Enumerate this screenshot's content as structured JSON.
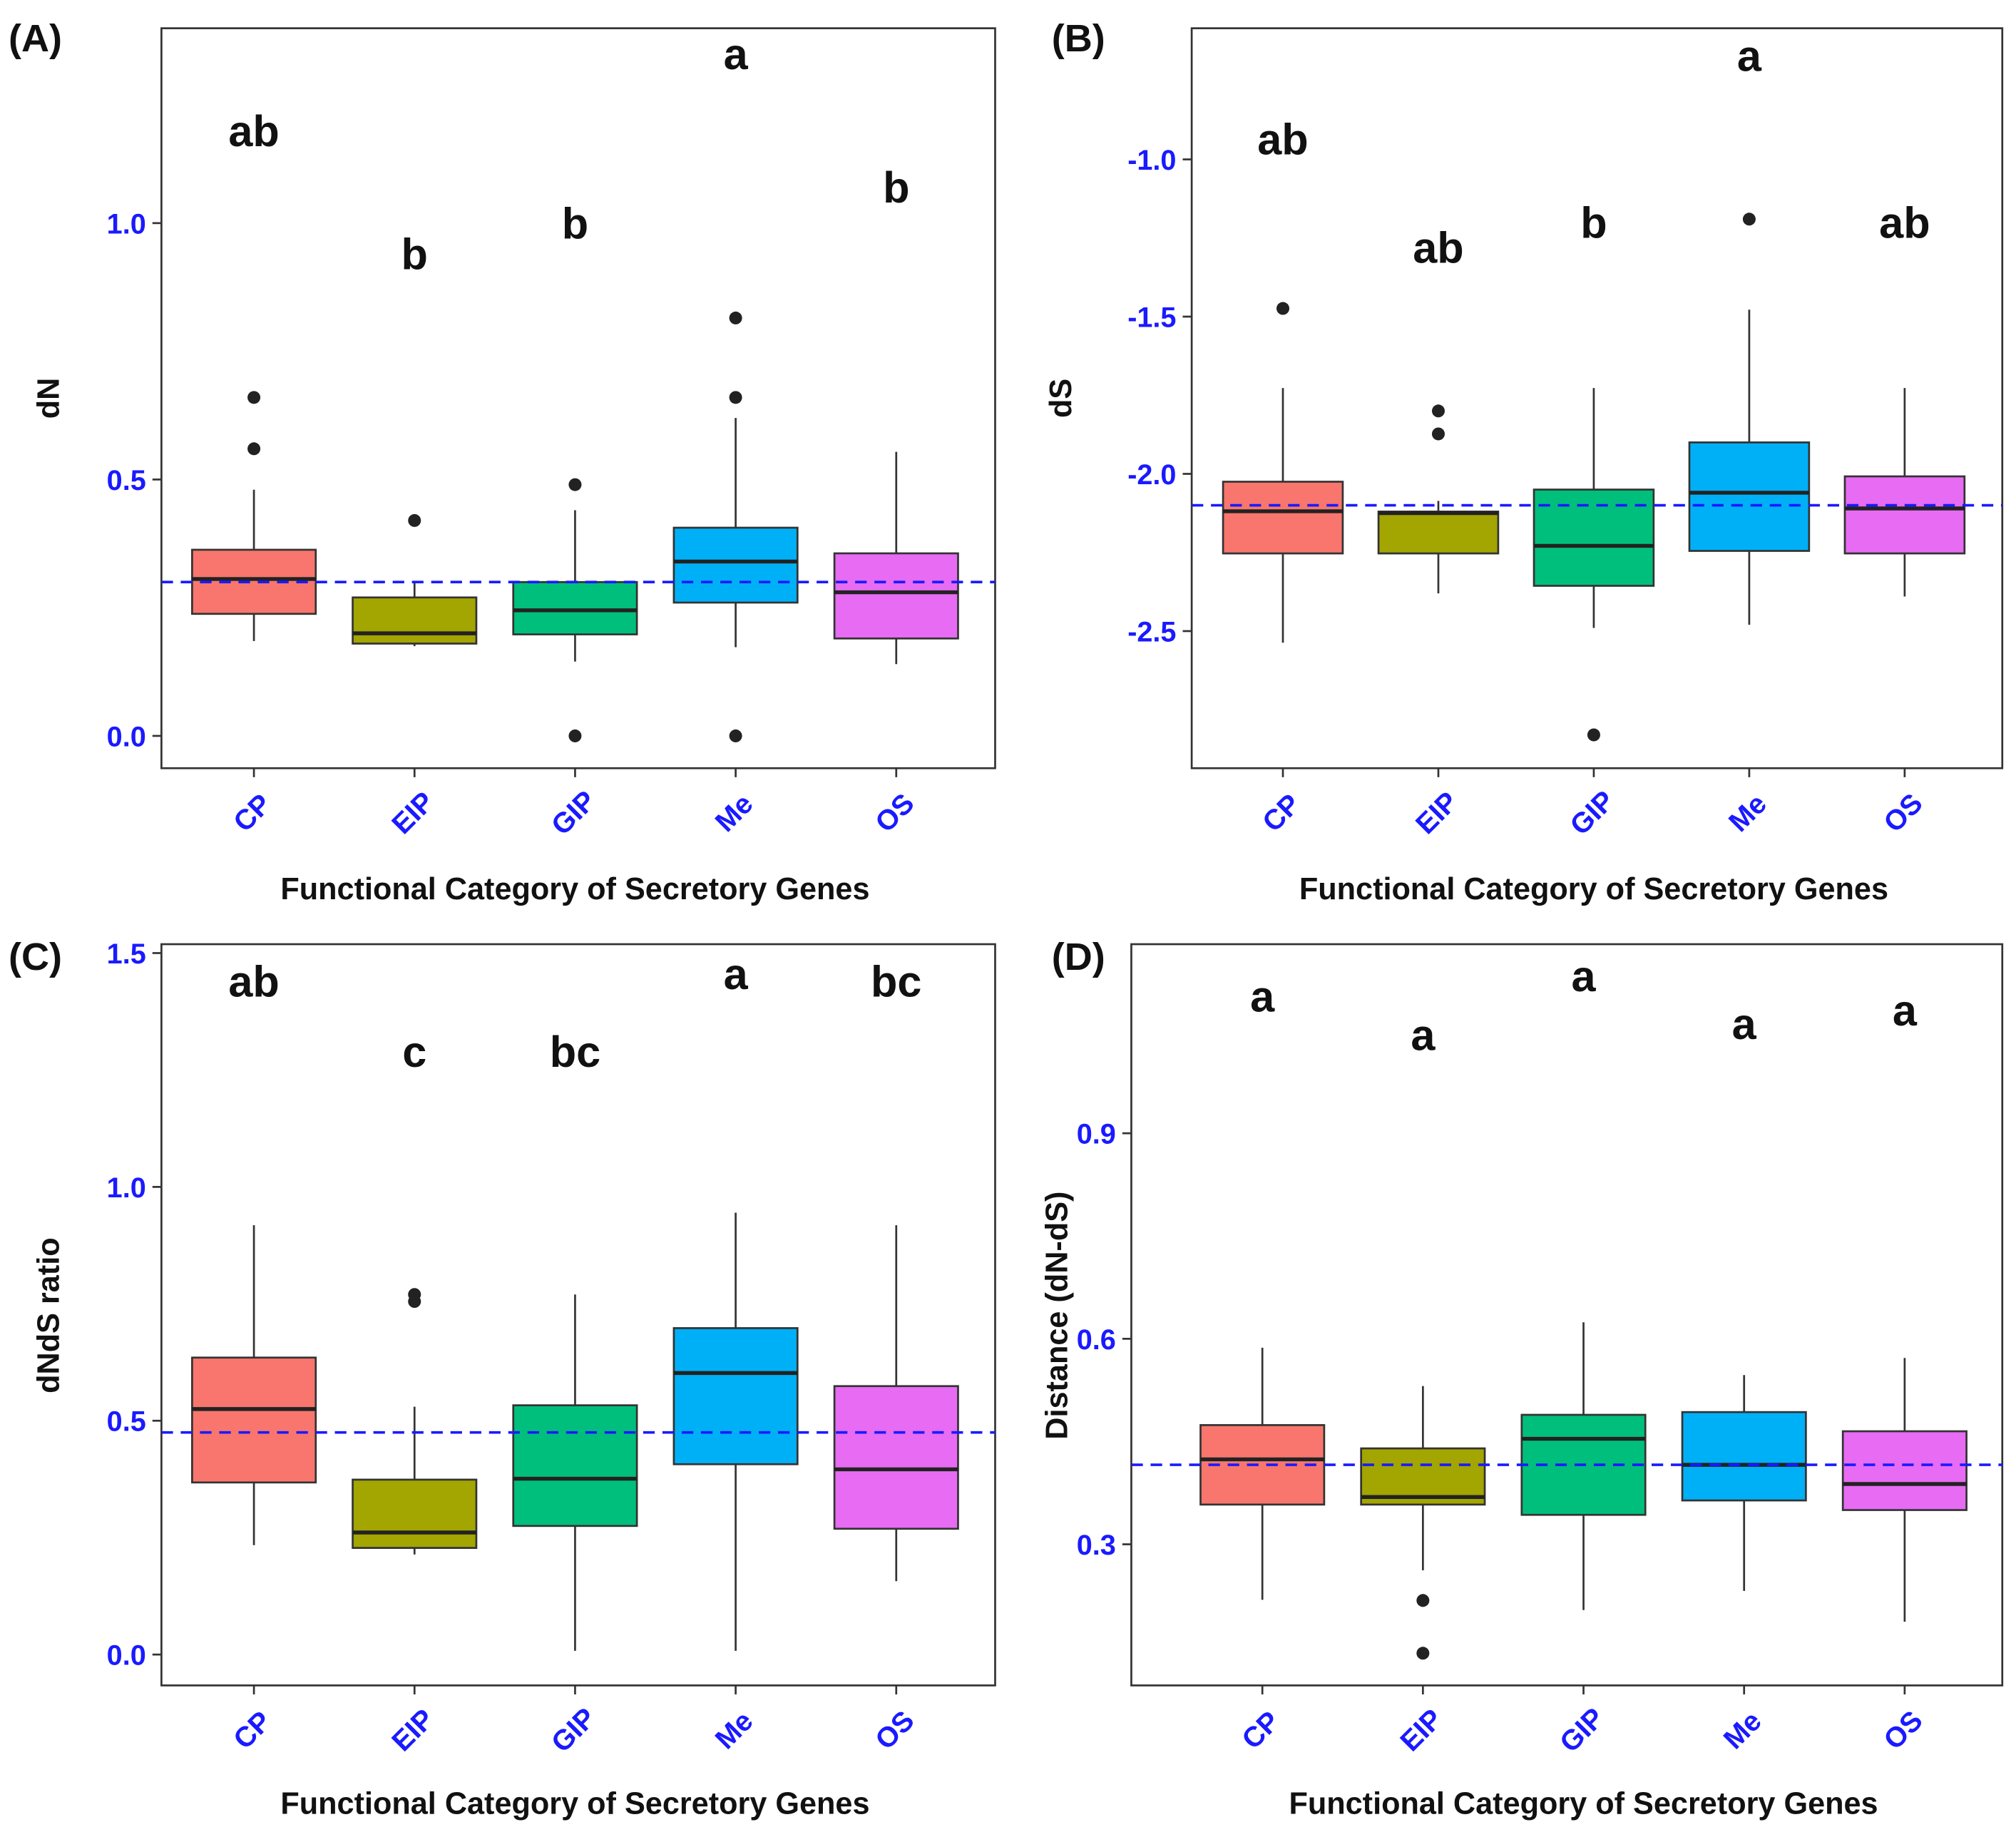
{
  "chart_data": [
    {
      "type": "box",
      "panel_label": "(A)",
      "xlabel": "Functional Category of Secretory Genes",
      "ylabel": "dN",
      "categories": [
        "CP",
        "EIP",
        "GIP",
        "Me",
        "OS"
      ],
      "colors": [
        "#F8766D",
        "#A3A500",
        "#00BF7D",
        "#00B0F6",
        "#E76BF3"
      ],
      "yticks": [
        0.0,
        0.5,
        1.0
      ],
      "ytick_labels": [
        "0.0",
        "0.5",
        "1.0"
      ],
      "ylim": [
        -0.063,
        1.38
      ],
      "reference_line": 0.3,
      "boxes": [
        {
          "low": 0.185,
          "q1": 0.238,
          "median": 0.306,
          "q3": 0.363,
          "high": 0.48,
          "outliers": [
            0.56,
            0.66
          ]
        },
        {
          "low": 0.175,
          "q1": 0.18,
          "median": 0.2,
          "q3": 0.27,
          "high": 0.3,
          "outliers": [
            0.42
          ]
        },
        {
          "low": 0.145,
          "q1": 0.198,
          "median": 0.245,
          "q3": 0.3,
          "high": 0.44,
          "outliers": [
            0.49,
            0.0
          ]
        },
        {
          "low": 0.173,
          "q1": 0.26,
          "median": 0.34,
          "q3": 0.406,
          "high": 0.62,
          "outliers": [
            0.66,
            0.815,
            0.0
          ]
        },
        {
          "low": 0.14,
          "q1": 0.19,
          "median": 0.28,
          "q3": 0.356,
          "high": 0.554,
          "outliers": []
        }
      ],
      "letters": [
        "ab",
        "b",
        "b",
        "a",
        "b"
      ],
      "letter_y": [
        1.18,
        0.94,
        1.0,
        1.33,
        1.07
      ]
    },
    {
      "type": "box",
      "panel_label": "(B)",
      "xlabel": "Functional Category of Secretory Genes",
      "ylabel": "dS",
      "categories": [
        "CP",
        "EIP",
        "GIP",
        "Me",
        "OS"
      ],
      "colors": [
        "#F8766D",
        "#A3A500",
        "#00BF7D",
        "#00B0F6",
        "#E76BF3"
      ],
      "yticks": [
        -2.5,
        -2.0,
        -1.5,
        -1.0
      ],
      "ytick_labels": [
        "-2.5",
        "-2.0",
        "-1.5",
        "-1.0"
      ],
      "ylim": [
        -2.936,
        -0.583
      ],
      "reference_line": -2.1,
      "boxes": [
        {
          "low": -2.537,
          "q1": -2.253,
          "median": -2.119,
          "q3": -2.025,
          "high": -1.727,
          "outliers": [
            -1.474
          ]
        },
        {
          "low": -2.38,
          "q1": -2.253,
          "median": -2.125,
          "q3": -2.12,
          "high": -2.086,
          "outliers": [
            -1.873,
            -1.8
          ]
        },
        {
          "low": -2.49,
          "q1": -2.356,
          "median": -2.229,
          "q3": -2.05,
          "high": -1.727,
          "outliers": [
            -2.83
          ]
        },
        {
          "low": -2.48,
          "q1": -2.245,
          "median": -2.06,
          "q3": -1.9,
          "high": -1.478,
          "outliers": [
            -1.19
          ]
        },
        {
          "low": -2.39,
          "q1": -2.253,
          "median": -2.11,
          "q3": -2.008,
          "high": -1.727,
          "outliers": []
        }
      ],
      "letters": [
        "ab",
        "ab",
        "b",
        "a",
        "ab"
      ],
      "letter_y": [
        -0.935,
        -1.28,
        -1.2,
        -0.67,
        -1.2
      ]
    },
    {
      "type": "box",
      "panel_label": "(C)",
      "xlabel": "Functional Category of Secretory Genes",
      "ylabel": "dNdS ratio",
      "categories": [
        "CP",
        "EIP",
        "GIP",
        "Me",
        "OS"
      ],
      "colors": [
        "#F8766D",
        "#A3A500",
        "#00BF7D",
        "#00B0F6",
        "#E76BF3"
      ],
      "yticks": [
        0.0,
        0.5,
        1.0,
        1.5
      ],
      "ytick_labels": [
        "0.0",
        "0.5",
        "1.0",
        "1.5"
      ],
      "ylim": [
        -0.066,
        1.519
      ],
      "reference_line": 0.475,
      "boxes": [
        {
          "low": 0.234,
          "q1": 0.368,
          "median": 0.525,
          "q3": 0.635,
          "high": 0.918,
          "outliers": []
        },
        {
          "low": 0.214,
          "q1": 0.228,
          "median": 0.261,
          "q3": 0.374,
          "high": 0.53,
          "outliers": [
            0.77,
            0.755
          ]
        },
        {
          "low": 0.008,
          "q1": 0.275,
          "median": 0.376,
          "q3": 0.533,
          "high": 0.77,
          "outliers": []
        },
        {
          "low": 0.008,
          "q1": 0.407,
          "median": 0.602,
          "q3": 0.698,
          "high": 0.945,
          "outliers": []
        },
        {
          "low": 0.157,
          "q1": 0.269,
          "median": 0.396,
          "q3": 0.574,
          "high": 0.918,
          "outliers": []
        }
      ],
      "letters": [
        "ab",
        "c",
        "bc",
        "a",
        "bc"
      ],
      "letter_y": [
        1.44,
        1.29,
        1.29,
        1.456,
        1.44
      ]
    },
    {
      "type": "box",
      "panel_label": "(D)",
      "xlabel": "Functional Category of Secretory Genes",
      "ylabel": "Distance (dN-dS)",
      "categories": [
        "CP",
        "EIP",
        "GIP",
        "Me",
        "OS"
      ],
      "colors": [
        "#F8766D",
        "#A3A500",
        "#00BF7D",
        "#00B0F6",
        "#E76BF3"
      ],
      "yticks": [
        0.3,
        0.6,
        0.9
      ],
      "ytick_labels": [
        "0.3",
        "0.6",
        "0.9"
      ],
      "ylim": [
        0.094,
        1.176
      ],
      "reference_line": 0.416,
      "boxes": [
        {
          "low": 0.219,
          "q1": 0.358,
          "median": 0.424,
          "q3": 0.474,
          "high": 0.587,
          "outliers": []
        },
        {
          "low": 0.262,
          "q1": 0.358,
          "median": 0.369,
          "q3": 0.44,
          "high": 0.531,
          "outliers": [
            0.218,
            0.141
          ]
        },
        {
          "low": 0.204,
          "q1": 0.343,
          "median": 0.454,
          "q3": 0.489,
          "high": 0.624,
          "outliers": []
        },
        {
          "low": 0.232,
          "q1": 0.364,
          "median": 0.416,
          "q3": 0.493,
          "high": 0.547,
          "outliers": []
        },
        {
          "low": 0.187,
          "q1": 0.35,
          "median": 0.388,
          "q3": 0.465,
          "high": 0.572,
          "outliers": []
        }
      ],
      "letters": [
        "a",
        "a",
        "a",
        "a",
        "a"
      ],
      "letter_y": [
        1.1,
        1.044,
        1.13,
        1.06,
        1.08
      ]
    }
  ]
}
